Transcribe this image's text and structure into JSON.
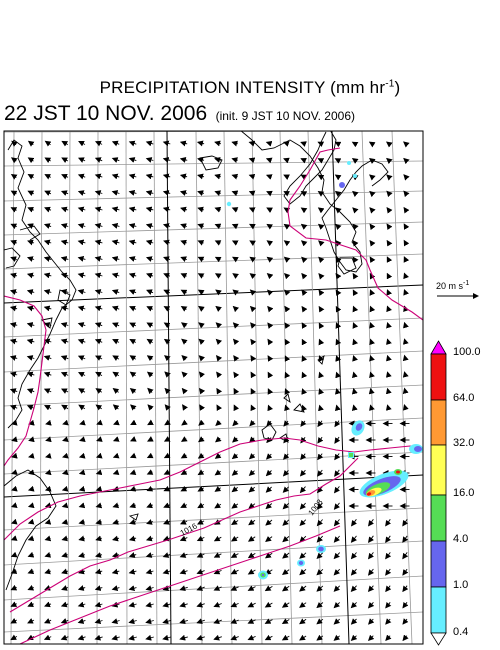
{
  "header": {
    "title_main": "PRECIPITATION INTENSITY (mm hr",
    "title_unit_exp": "-1",
    "title_close": ")",
    "valid_time": "22 JST 10 NOV. 2006",
    "init_time": "(init. 9 JST 10 NOV. 2006)"
  },
  "wind_scale": {
    "label": "20 m s",
    "exp": "-1"
  },
  "colorbar": {
    "labels": [
      "100.0",
      "64.0",
      "32.0",
      "16.0",
      "4.0",
      "1.0",
      "0.4"
    ],
    "colors": [
      "#ff00ff",
      "#ee1111",
      "#ff9933",
      "#ffff55",
      "#55dd55",
      "#6666ee",
      "#66eeff",
      "#ffffff"
    ]
  },
  "map": {
    "isobar_labels": [
      "1016",
      "1008"
    ],
    "colors": {
      "coast": "#000000",
      "grid": "#999999",
      "isobar": "#cc0077",
      "arrow": "#000000"
    }
  }
}
